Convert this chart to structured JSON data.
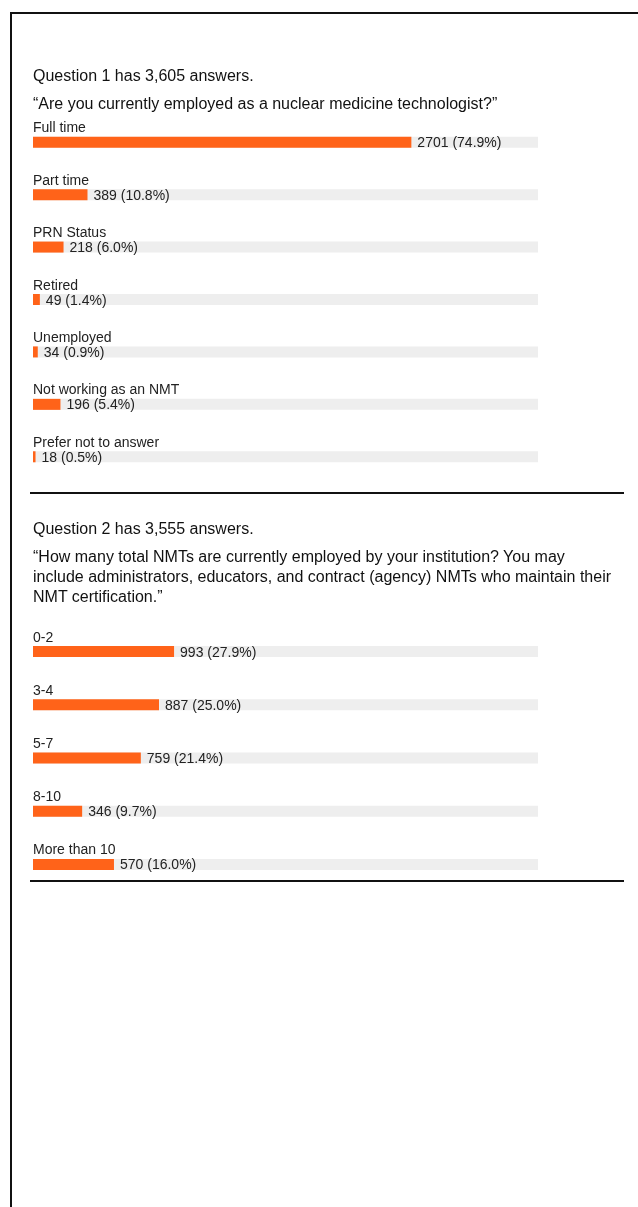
{
  "chart_data": [
    {
      "type": "bar",
      "orientation": "horizontal",
      "title": "Question 1 has 3,605 answers.",
      "subtitle": "“Are you currently employed as a nuclear medicine technologist?”",
      "categories": [
        "Full time",
        "Part time",
        "PRN Status",
        "Retired",
        "Unemployed",
        "Not working as an NMT",
        "Prefer not to answer"
      ],
      "values": [
        2701,
        389,
        218,
        49,
        34,
        196,
        18
      ],
      "value_labels": [
        "2701 (74.9%)",
        "389 (10.8%)",
        "218 (6.0%)",
        "49 (1.4%)",
        "34 (0.9%)",
        "196 (5.4%)",
        "18 (0.5%)"
      ],
      "color": "#ff6319",
      "xlim": [
        0,
        3605
      ],
      "tick_labels": "y"
    },
    {
      "type": "bar",
      "orientation": "horizontal",
      "title": "Question 2 has 3,555 answers.",
      "subtitle": "“How many total NMTs are currently employed by your institution? You may include administrators, educators, and contract (agency) NMTs who maintain their NMT certification.”",
      "categories": [
        "0-2",
        "3-4",
        "5-7",
        "8-10",
        "More than 10"
      ],
      "values": [
        993,
        887,
        759,
        346,
        570
      ],
      "value_labels": [
        "993 (27.9%)",
        "887 (25.0%)",
        "759 (21.4%)",
        "346 (9.7%)",
        "570 (16.0%)"
      ],
      "color": "#ff6319",
      "xlim": [
        0,
        3555
      ],
      "tick_labels": "y"
    }
  ]
}
